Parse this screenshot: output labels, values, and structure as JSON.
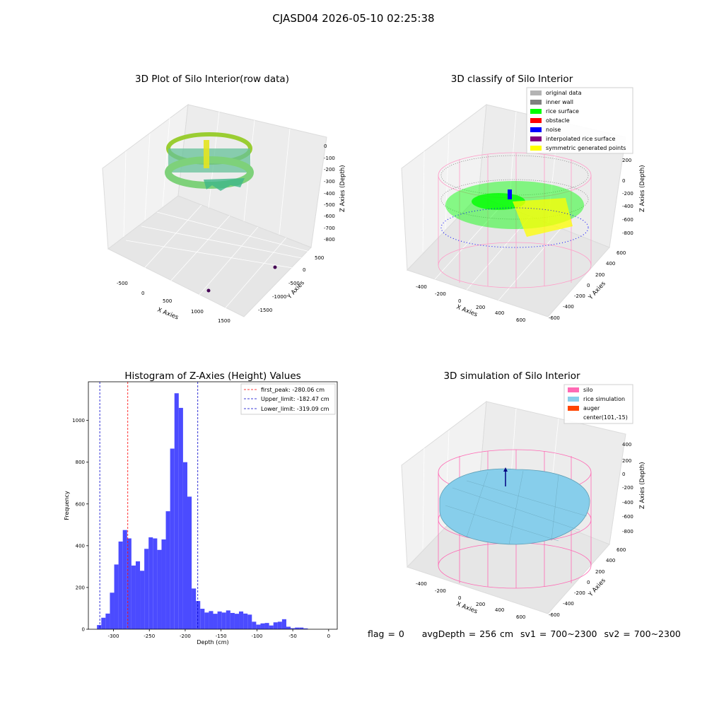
{
  "figure": {
    "suptitle": "CJASD04 2026-05-10 02:25:38",
    "footer": {
      "flag": "flag = 0",
      "avg_depth": "avgDepth = 256 cm",
      "sv1": "sv1 = 700~2300",
      "sv2": "sv2 = 700~2300"
    }
  },
  "colors": {
    "histogram": "#4b4bff",
    "first_peak": "#ff0000",
    "limits": "#0000cc",
    "silo": "#ff69b4",
    "rice_simulation": "#87ceeb",
    "auger": "#ff4500",
    "original_data": "#b3b3b3",
    "inner_wall": "#808080",
    "rice_surface": "#00ff00",
    "obstacle": "#ff0000",
    "noise": "#0000ff",
    "interpolated_rice_surface": "#800080",
    "symmetric_generated_points": "#ffff00"
  },
  "chart_data": [
    {
      "type": "scatter3d",
      "title": "3D Plot of Silo Interior(row data)",
      "xlabel": "X Axies",
      "ylabel": "Y Axies",
      "zlabel": "Z Axies (Depth)",
      "x_ticks": [
        "-500",
        "0",
        "500",
        "1000",
        "1500"
      ],
      "y_ticks": [
        "500",
        "0",
        "-500",
        "-1000",
        "-1500"
      ],
      "z_ticks": [
        "0",
        "-100",
        "-200",
        "-300",
        "-400",
        "-500",
        "-600",
        "-700",
        "-800"
      ],
      "grid": true
    },
    {
      "type": "scatter3d",
      "title": "3D classify of Silo Interior",
      "xlabel": "X Axies",
      "ylabel": "Y Axies",
      "zlabel": "Z Axies (Depth)",
      "x_ticks": [
        "-400",
        "-200",
        "0",
        "200",
        "400",
        "600"
      ],
      "y_ticks": [
        "600",
        "400",
        "200",
        "0",
        "-200",
        "-400",
        "-600"
      ],
      "z_ticks": [
        "200",
        "0",
        "-200",
        "-400",
        "-600",
        "-800"
      ],
      "legend_position": "top-right",
      "legend": [
        "original data",
        "inner wall",
        "rice surface",
        "obstacle",
        "noise",
        "interpolated rice surface",
        "symmetric generated points"
      ],
      "grid": true
    },
    {
      "type": "bar",
      "title": "Histogram of Z-Axies (Height) Values",
      "xlabel": "Depth (cm)",
      "ylabel": "Frequency",
      "xlim": [
        -335,
        12
      ],
      "ylim": [
        0,
        1185
      ],
      "x_ticks": [
        -300,
        -250,
        -200,
        -150,
        -100,
        -50,
        0
      ],
      "y_ticks": [
        0,
        200,
        400,
        600,
        800,
        1000
      ],
      "bin_start": -323,
      "bin_width": 6,
      "values": [
        20,
        55,
        75,
        175,
        310,
        420,
        475,
        435,
        305,
        325,
        280,
        385,
        440,
        435,
        380,
        430,
        565,
        865,
        1130,
        1060,
        800,
        635,
        195,
        135,
        98,
        80,
        87,
        74,
        85,
        80,
        90,
        78,
        74,
        85,
        75,
        70,
        36,
        22,
        28,
        30,
        18,
        33,
        36,
        48,
        12,
        5,
        8,
        8,
        4
      ],
      "vlines": [
        {
          "label": "first_peak: -280.06 cm",
          "x": -280.06,
          "color": "#ff0000"
        },
        {
          "label": "Upper_limit: -182.47 cm",
          "x": -182.47,
          "color": "#0000cc"
        },
        {
          "label": "Lower_limit: -319.09 cm",
          "x": -319.09,
          "color": "#0000cc"
        }
      ],
      "legend_position": "top-right",
      "grid": false
    },
    {
      "type": "surface3d",
      "title": "3D simulation of Silo Interior",
      "xlabel": "X Axies",
      "ylabel": "Y Axies",
      "zlabel": "Z Axies (Depth)",
      "x_ticks": [
        "-400",
        "-200",
        "0",
        "200",
        "400",
        "600"
      ],
      "y_ticks": [
        "600",
        "400",
        "200",
        "0",
        "-200",
        "-400",
        "-600"
      ],
      "z_ticks": [
        "400",
        "200",
        "0",
        "-200",
        "-400",
        "-600",
        "-800"
      ],
      "legend_position": "top-right",
      "legend": [
        "silo",
        "rice simulation",
        "auger",
        "center(101,-15)"
      ],
      "grid": true
    }
  ]
}
